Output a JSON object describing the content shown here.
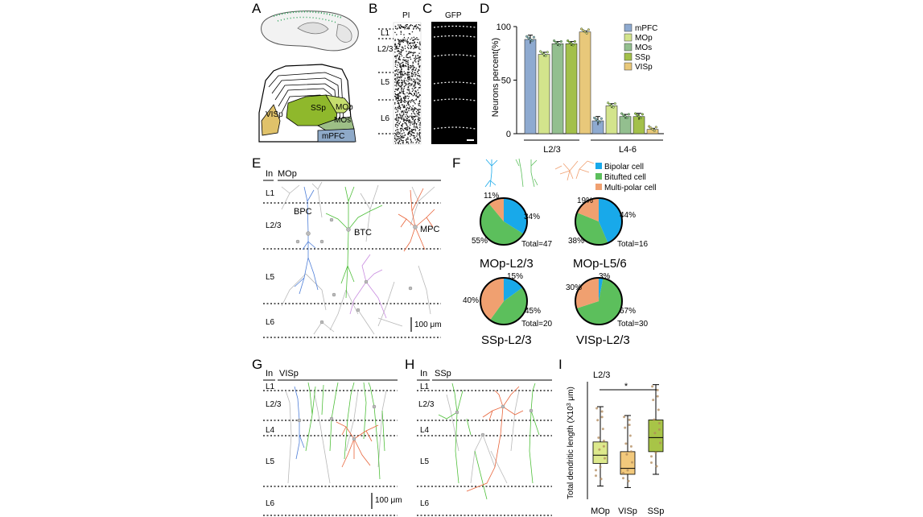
{
  "panels": {
    "A": "A",
    "B": "B",
    "C": "C",
    "D": "D",
    "E": "E",
    "F": "F",
    "G": "G",
    "H": "H",
    "I": "I"
  },
  "panel_A": {
    "regions": [
      "SSp",
      "MOp",
      "MOs",
      "VISp",
      "mPFC"
    ],
    "colors": {
      "SSp": "#8fb82c",
      "MOp": "#c6de6e",
      "MOs": "#9dbf86",
      "VISp": "#e0c26a",
      "mPFC": "#8ea9c8"
    }
  },
  "panel_B": {
    "title": "PI",
    "layers": [
      "L1",
      "L2/3",
      "L5",
      "L6"
    ]
  },
  "panel_C": {
    "title": "GFP"
  },
  "chart_data": [
    {
      "panel": "D",
      "type": "bar",
      "ylabel": "Neurons percent(%)",
      "ylim": [
        0,
        100
      ],
      "yticks": [
        "0",
        "50",
        "100"
      ],
      "groups": [
        "L2/3",
        "L4-6"
      ],
      "series": [
        {
          "name": "mPFC",
          "color": "#8eaad0",
          "values": [
            88,
            12
          ],
          "err": [
            4,
            4
          ]
        },
        {
          "name": "MOp",
          "color": "#d3e48c",
          "values": [
            74,
            26
          ],
          "err": [
            2,
            2
          ]
        },
        {
          "name": "MOs",
          "color": "#93bf8f",
          "values": [
            84,
            16
          ],
          "err": [
            2,
            2
          ]
        },
        {
          "name": "SSp",
          "color": "#a3c04a",
          "values": [
            84,
            16
          ],
          "err": [
            2,
            3
          ]
        },
        {
          "name": "VISp",
          "color": "#e8c87a",
          "values": [
            95,
            4
          ],
          "err": [
            1,
            1
          ]
        }
      ]
    },
    {
      "panel": "F",
      "type": "pie",
      "legend": [
        "Bipolar cell",
        "Bitufted cell",
        "Multi-polar cell"
      ],
      "colors": {
        "Bipolar cell": "#18a9ea",
        "Bitufted cell": "#5cbf5c",
        "Multi-polar cell": "#f0a070"
      },
      "pies": [
        {
          "label": "MOp-L2/3",
          "total": "Total=47",
          "values": [
            34,
            55,
            11
          ],
          "labels": [
            "34%",
            "55%",
            "11%"
          ]
        },
        {
          "label": "MOp-L5/6",
          "total": "Total=16",
          "values": [
            44,
            38,
            19
          ],
          "labels": [
            "44%",
            "38%",
            "19%"
          ]
        },
        {
          "label": "SSp-L2/3",
          "total": "Total=20",
          "values": [
            15,
            45,
            40
          ],
          "labels": [
            "15%",
            "45%",
            "40%"
          ]
        },
        {
          "label": "VISp-L2/3",
          "total": "Total=30",
          "values": [
            3,
            67,
            30
          ],
          "labels": [
            "3%",
            "67%",
            "30%"
          ]
        }
      ]
    },
    {
      "panel": "I",
      "type": "box",
      "title": "L2/3",
      "ylabel": "Total dendritic length (X10",
      "ylabel_sup": "3",
      "ylabel_tail": " μm)",
      "categories": [
        "MOp",
        "VISp",
        "SSp"
      ],
      "colors": [
        "#dde98c",
        "#f2c97c",
        "#a8c447"
      ],
      "ylim": [
        0,
        4
      ],
      "boxes": [
        {
          "min": 0.45,
          "q1": 1.22,
          "median": 1.5,
          "q3": 1.95,
          "max": 3.15
        },
        {
          "min": 0.4,
          "q1": 0.85,
          "median": 1.05,
          "q3": 1.62,
          "max": 2.85
        },
        {
          "min": 0.85,
          "q1": 1.62,
          "median": 2.1,
          "q3": 2.7,
          "max": 3.9
        }
      ],
      "significance": "*"
    }
  ],
  "panel_E": {
    "title_in": "In",
    "title_area": "MOp",
    "layers": [
      "L1",
      "L2/3",
      "L5",
      "L6"
    ],
    "cell_labels": [
      "BPC",
      "BTC",
      "MPC"
    ],
    "scale": "100 μm"
  },
  "panel_G": {
    "title_in": "In",
    "title_area": "VISp",
    "layers": [
      "L1",
      "L2/3",
      "L4",
      "L5",
      "L6"
    ],
    "scale": "100 μm"
  },
  "panel_H": {
    "title_in": "In",
    "title_area": "SSp",
    "layers": [
      "L1",
      "L2/3",
      "L4",
      "L5",
      "L6"
    ]
  }
}
